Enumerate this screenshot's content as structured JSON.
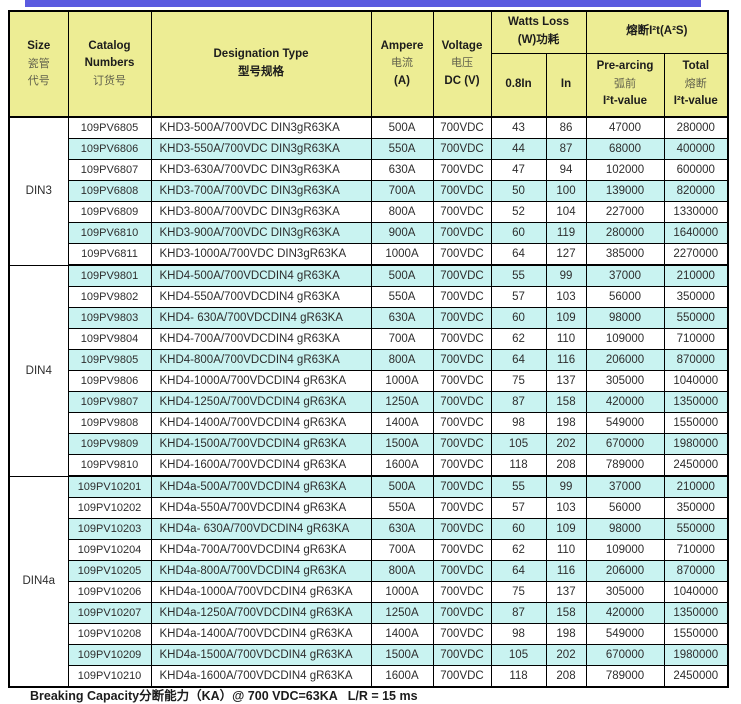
{
  "page": {
    "accent_bar_color": "#5b5be0",
    "header_bg_color": "#eded94",
    "stripe_color": "#c9f3f1",
    "footer_note": "Breaking Capacity分断能力（KA）@ 700 VDC=63KA   L/R = 15 ms"
  },
  "table": {
    "header": {
      "size_en": "Size",
      "size_zh1": "瓷管",
      "size_zh2": "代号",
      "catalog_en1": "Catalog",
      "catalog_en2": "Numbers",
      "catalog_zh": "订货号",
      "designation_en": "Designation Type",
      "designation_zh": "型号规格",
      "ampere_en": "Ampere",
      "ampere_zh": "电流",
      "ampere_unit": "(A)",
      "voltage_en": "Voltage",
      "voltage_zh": "电压",
      "voltage_unit": "DC (V)",
      "watts_en": "Watts Loss",
      "watts_zh": "(W)功耗",
      "watts_sub_08in": "0.8In",
      "watts_sub_in": "In",
      "i2t_group": "熔断I²t(A²S)",
      "prearcing_en": "Pre-arcing",
      "prearcing_zh": "弧前",
      "prearcing_sub": "I²t-value",
      "total_en": "Total",
      "total_zh": "熔断",
      "total_sub": "I²t-value"
    },
    "columns": [
      "Catalog Numbers",
      "Designation Type",
      "Ampere (A)",
      "Voltage DC (V)",
      "Watts Loss 0.8In",
      "Watts Loss In",
      "Pre-arcing I²t-value",
      "Total I²t-value"
    ],
    "sections": [
      {
        "size": "DIN3",
        "rows": [
          [
            "109PV6805",
            "KHD3-500A/700VDC DIN3gR63KA",
            "500A",
            "700VDC",
            "43",
            "86",
            "47000",
            "280000"
          ],
          [
            "109PV6806",
            "KHD3-550A/700VDC DIN3gR63KA",
            "550A",
            "700VDC",
            "44",
            "87",
            "68000",
            "400000"
          ],
          [
            "109PV6807",
            "KHD3-630A/700VDC DIN3gR63KA",
            "630A",
            "700VDC",
            "47",
            "94",
            "102000",
            "600000"
          ],
          [
            "109PV6808",
            "KHD3-700A/700VDC DIN3gR63KA",
            "700A",
            "700VDC",
            "50",
            "100",
            "139000",
            "820000"
          ],
          [
            "109PV6809",
            "KHD3-800A/700VDC DIN3gR63KA",
            "800A",
            "700VDC",
            "52",
            "104",
            "227000",
            "1330000"
          ],
          [
            "109PV6810",
            "KHD3-900A/700VDC DIN3gR63KA",
            "900A",
            "700VDC",
            "60",
            "119",
            "280000",
            "1640000"
          ],
          [
            "109PV6811",
            "KHD3-1000A/700VDC DIN3gR63KA",
            "1000A",
            "700VDC",
            "64",
            "127",
            "385000",
            "2270000"
          ]
        ]
      },
      {
        "size": "DIN4",
        "rows": [
          [
            "109PV9801",
            "KHD4-500A/700VDCDIN4 gR63KA",
            "500A",
            "700VDC",
            "55",
            "99",
            "37000",
            "210000"
          ],
          [
            "109PV9802",
            "KHD4-550A/700VDCDIN4 gR63KA",
            "550A",
            "700VDC",
            "57",
            "103",
            "56000",
            "350000"
          ],
          [
            "109PV9803",
            "KHD4- 630A/700VDCDIN4 gR63KA",
            "630A",
            "700VDC",
            "60",
            "109",
            "98000",
            "550000"
          ],
          [
            "109PV9804",
            "KHD4-700A/700VDCDIN4 gR63KA",
            "700A",
            "700VDC",
            "62",
            "110",
            "109000",
            "710000"
          ],
          [
            "109PV9805",
            "KHD4-800A/700VDCDIN4 gR63KA",
            "800A",
            "700VDC",
            "64",
            "116",
            "206000",
            "870000"
          ],
          [
            "109PV9806",
            "KHD4-1000A/700VDCDIN4 gR63KA",
            "1000A",
            "700VDC",
            "75",
            "137",
            "305000",
            "1040000"
          ],
          [
            "109PV9807",
            "KHD4-1250A/700VDCDIN4 gR63KA",
            "1250A",
            "700VDC",
            "87",
            "158",
            "420000",
            "1350000"
          ],
          [
            "109PV9808",
            "KHD4-1400A/700VDCDIN4 gR63KA",
            "1400A",
            "700VDC",
            "98",
            "198",
            "549000",
            "1550000"
          ],
          [
            "109PV9809",
            "KHD4-1500A/700VDCDIN4 gR63KA",
            "1500A",
            "700VDC",
            "105",
            "202",
            "670000",
            "1980000"
          ],
          [
            "109PV9810",
            "KHD4-1600A/700VDCDIN4 gR63KA",
            "1600A",
            "700VDC",
            "118",
            "208",
            "789000",
            "2450000"
          ]
        ]
      },
      {
        "size": "DIN4a",
        "rows": [
          [
            "109PV10201",
            "KHD4a-500A/700VDCDIN4 gR63KA",
            "500A",
            "700VDC",
            "55",
            "99",
            "37000",
            "210000"
          ],
          [
            "109PV10202",
            "KHD4a-550A/700VDCDIN4 gR63KA",
            "550A",
            "700VDC",
            "57",
            "103",
            "56000",
            "350000"
          ],
          [
            "109PV10203",
            "KHD4a- 630A/700VDCDIN4 gR63KA",
            "630A",
            "700VDC",
            "60",
            "109",
            "98000",
            "550000"
          ],
          [
            "109PV10204",
            "KHD4a-700A/700VDCDIN4 gR63KA",
            "700A",
            "700VDC",
            "62",
            "110",
            "109000",
            "710000"
          ],
          [
            "109PV10205",
            "KHD4a-800A/700VDCDIN4 gR63KA",
            "800A",
            "700VDC",
            "64",
            "116",
            "206000",
            "870000"
          ],
          [
            "109PV10206",
            "KHD4a-1000A/700VDCDIN4 gR63KA",
            "1000A",
            "700VDC",
            "75",
            "137",
            "305000",
            "1040000"
          ],
          [
            "109PV10207",
            "KHD4a-1250A/700VDCDIN4 gR63KA",
            "1250A",
            "700VDC",
            "87",
            "158",
            "420000",
            "1350000"
          ],
          [
            "109PV10208",
            "KHD4a-1400A/700VDCDIN4 gR63KA",
            "1400A",
            "700VDC",
            "98",
            "198",
            "549000",
            "1550000"
          ],
          [
            "109PV10209",
            "KHD4a-1500A/700VDCDIN4 gR63KA",
            "1500A",
            "700VDC",
            "105",
            "202",
            "670000",
            "1980000"
          ],
          [
            "109PV10210",
            "KHD4a-1600A/700VDCDIN4 gR63KA",
            "1600A",
            "700VDC",
            "118",
            "208",
            "789000",
            "2450000"
          ]
        ]
      }
    ]
  }
}
